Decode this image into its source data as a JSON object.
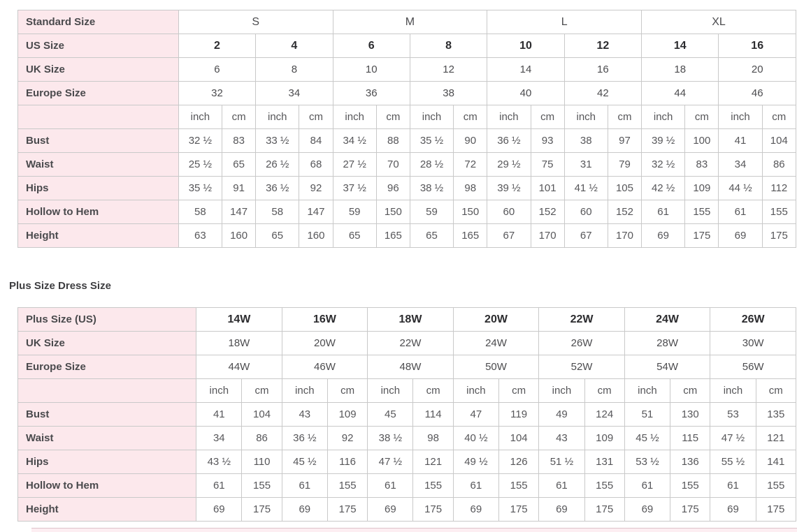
{
  "colors": {
    "pink": "#fce8ec",
    "border": "#c9c9c9",
    "label_text": "#4a4a4d",
    "value_text": "#57575a",
    "bold_text": "#2c2c2f"
  },
  "plus_section_heading": "Plus Size Dress Size",
  "standard_table": {
    "header_rows": [
      {
        "label": "Standard Size",
        "span": 4,
        "values": [
          "S",
          "M",
          "L",
          "XL"
        ]
      },
      {
        "label": "US Size",
        "span": 2,
        "bold": true,
        "values": [
          "2",
          "4",
          "6",
          "8",
          "10",
          "12",
          "14",
          "16"
        ]
      },
      {
        "label": "UK Size",
        "span": 2,
        "values": [
          "6",
          "8",
          "10",
          "12",
          "14",
          "16",
          "18",
          "20"
        ]
      },
      {
        "label": "Europe Size",
        "span": 2,
        "values": [
          "32",
          "34",
          "36",
          "38",
          "40",
          "42",
          "44",
          "46"
        ]
      }
    ],
    "unit_row": [
      "inch",
      "cm",
      "inch",
      "cm",
      "inch",
      "cm",
      "inch",
      "cm",
      "inch",
      "cm",
      "inch",
      "cm",
      "inch",
      "cm",
      "inch",
      "cm"
    ],
    "body_rows": [
      {
        "label": "Bust",
        "values": [
          "32 ½",
          "83",
          "33 ½",
          "84",
          "34 ½",
          "88",
          "35 ½",
          "90",
          "36 ½",
          "93",
          "38",
          "97",
          "39 ½",
          "100",
          "41",
          "104"
        ]
      },
      {
        "label": "Waist",
        "values": [
          "25 ½",
          "65",
          "26 ½",
          "68",
          "27 ½",
          "70",
          "28 ½",
          "72",
          "29 ½",
          "75",
          "31",
          "79",
          "32 ½",
          "83",
          "34",
          "86"
        ]
      },
      {
        "label": "Hips",
        "values": [
          "35 ½",
          "91",
          "36 ½",
          "92",
          "37 ½",
          "96",
          "38 ½",
          "98",
          "39 ½",
          "101",
          "41 ½",
          "105",
          "42 ½",
          "109",
          "44 ½",
          "112"
        ]
      },
      {
        "label": "Hollow to Hem",
        "values": [
          "58",
          "147",
          "58",
          "147",
          "59",
          "150",
          "59",
          "150",
          "60",
          "152",
          "60",
          "152",
          "61",
          "155",
          "61",
          "155"
        ]
      },
      {
        "label": "Height",
        "values": [
          "63",
          "160",
          "65",
          "160",
          "65",
          "165",
          "65",
          "165",
          "67",
          "170",
          "67",
          "170",
          "69",
          "175",
          "69",
          "175"
        ]
      }
    ]
  },
  "plus_table": {
    "header_rows": [
      {
        "label": "Plus Size (US)",
        "span": 2,
        "bold": true,
        "values": [
          "14W",
          "16W",
          "18W",
          "20W",
          "22W",
          "24W",
          "26W"
        ]
      },
      {
        "label": "UK Size",
        "span": 2,
        "values": [
          "18W",
          "20W",
          "22W",
          "24W",
          "26W",
          "28W",
          "30W"
        ]
      },
      {
        "label": "Europe Size",
        "span": 2,
        "values": [
          "44W",
          "46W",
          "48W",
          "50W",
          "52W",
          "54W",
          "56W"
        ]
      }
    ],
    "unit_row": [
      "inch",
      "cm",
      "inch",
      "cm",
      "inch",
      "cm",
      "inch",
      "cm",
      "inch",
      "cm",
      "inch",
      "cm",
      "inch",
      "cm"
    ],
    "body_rows": [
      {
        "label": "Bust",
        "values": [
          "41",
          "104",
          "43",
          "109",
          "45",
          "114",
          "47",
          "119",
          "49",
          "124",
          "51",
          "130",
          "53",
          "135"
        ]
      },
      {
        "label": "Waist",
        "values": [
          "34",
          "86",
          "36 ½",
          "92",
          "38 ½",
          "98",
          "40 ½",
          "104",
          "43",
          "109",
          "45 ½",
          "115",
          "47 ½",
          "121"
        ]
      },
      {
        "label": "Hips",
        "values": [
          "43 ½",
          "110",
          "45 ½",
          "116",
          "47 ½",
          "121",
          "49 ½",
          "126",
          "51 ½",
          "131",
          "53 ½",
          "136",
          "55 ½",
          "141"
        ]
      },
      {
        "label": "Hollow to Hem",
        "values": [
          "61",
          "155",
          "61",
          "155",
          "61",
          "155",
          "61",
          "155",
          "61",
          "155",
          "61",
          "155",
          "61",
          "155"
        ]
      },
      {
        "label": "Height",
        "values": [
          "69",
          "175",
          "69",
          "175",
          "69",
          "175",
          "69",
          "175",
          "69",
          "175",
          "69",
          "175",
          "69",
          "175"
        ]
      }
    ]
  }
}
